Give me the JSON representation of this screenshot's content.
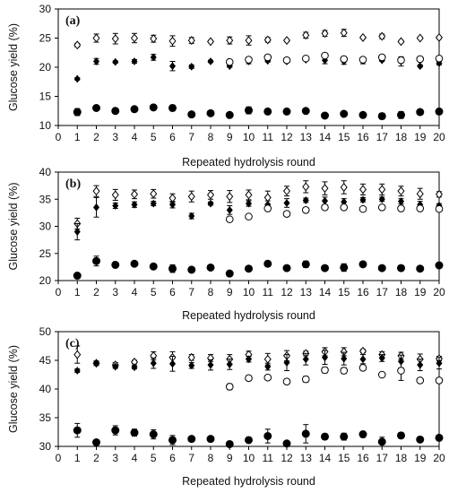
{
  "chart_data": [
    {
      "type": "scatter",
      "panel_label": "(a)",
      "xlabel": "Repeated hydrolysis round",
      "ylabel": "Glucose yield (%)",
      "xlim": [
        0,
        20
      ],
      "ylim": [
        10,
        30
      ],
      "xticks": [
        0,
        1,
        2,
        3,
        4,
        5,
        6,
        7,
        8,
        9,
        10,
        11,
        12,
        13,
        14,
        15,
        16,
        17,
        18,
        19,
        20
      ],
      "yticks": [
        10,
        15,
        20,
        25,
        30
      ],
      "grid": false,
      "series": [
        {
          "marker": "diamond-open",
          "x": [
            1,
            2,
            3,
            4,
            5,
            6,
            7,
            8,
            9,
            10,
            11,
            12,
            13,
            14,
            15,
            16,
            17,
            18,
            19,
            20
          ],
          "y": [
            23.8,
            25.0,
            24.9,
            25.0,
            24.9,
            24.5,
            24.6,
            24.4,
            24.6,
            24.6,
            24.7,
            24.6,
            25.5,
            25.8,
            25.9,
            25.1,
            25.3,
            24.4,
            25.0,
            25.1
          ],
          "err": [
            0.3,
            0.7,
            0.9,
            0.8,
            0.6,
            0.9,
            0.5,
            0.2,
            0.6,
            0.8,
            0.4,
            0.2,
            0.5,
            0.5,
            0.6,
            0.2,
            0.4,
            0.2,
            0.2,
            0.2
          ]
        },
        {
          "marker": "diamond-filled",
          "x": [
            1,
            2,
            3,
            4,
            5,
            6,
            7,
            8,
            9,
            10,
            11,
            12,
            13,
            14,
            15,
            16,
            17,
            18,
            19,
            20
          ],
          "y": [
            18.0,
            21.0,
            20.9,
            21.0,
            21.7,
            20.2,
            20.1,
            21.0,
            20.2,
            21.0,
            21.1,
            21.0,
            21.3,
            21.2,
            21.0,
            21.1,
            21.2,
            21.0,
            20.2,
            20.7
          ],
          "err": [
            0.2,
            0.5,
            0.2,
            0.3,
            0.5,
            0.8,
            0.3,
            0.2,
            0.2,
            0.4,
            0.2,
            0.2,
            0.2,
            0.6,
            0.5,
            0.5,
            0.2,
            0.8,
            0.2,
            0.3
          ]
        },
        {
          "marker": "circle-open",
          "x": [
            9,
            10,
            11,
            12,
            13,
            14,
            15,
            16,
            17,
            18,
            19,
            20
          ],
          "y": [
            20.9,
            21.3,
            21.7,
            21.2,
            21.5,
            22.0,
            21.4,
            21.3,
            21.7,
            21.2,
            21.4,
            21.5
          ],
          "err": [
            0,
            0,
            0,
            0,
            0,
            0,
            0,
            0,
            0,
            0,
            0,
            0
          ]
        },
        {
          "marker": "circle-filled",
          "x": [
            1,
            2,
            3,
            4,
            5,
            6,
            7,
            8,
            9,
            10,
            11,
            12,
            13,
            14,
            15,
            16,
            17,
            18,
            19,
            20
          ],
          "y": [
            12.3,
            13.0,
            12.5,
            12.8,
            13.1,
            13.0,
            11.9,
            12.1,
            11.8,
            12.6,
            12.4,
            12.4,
            12.5,
            11.7,
            12.0,
            11.8,
            11.6,
            11.8,
            12.3,
            12.4
          ],
          "err": [
            0.6,
            0.4,
            0.2,
            0.3,
            0.3,
            0.5,
            0.2,
            0.2,
            0.2,
            0.6,
            0.2,
            0.2,
            0.2,
            0.2,
            0.2,
            0.2,
            0.5,
            0.6,
            0.2,
            0.3
          ]
        }
      ]
    },
    {
      "type": "scatter",
      "panel_label": "(b)",
      "xlabel": "Repeated hydrolysis round",
      "ylabel": "Glucose yield (%)",
      "xlim": [
        0,
        20
      ],
      "ylim": [
        20,
        40
      ],
      "xticks": [
        0,
        1,
        2,
        3,
        4,
        5,
        6,
        7,
        8,
        9,
        10,
        11,
        12,
        13,
        14,
        15,
        16,
        17,
        18,
        19,
        20
      ],
      "yticks": [
        20,
        25,
        30,
        35,
        40
      ],
      "grid": false,
      "series": [
        {
          "marker": "diamond-open",
          "x": [
            1,
            2,
            3,
            4,
            5,
            6,
            7,
            8,
            9,
            10,
            11,
            12,
            13,
            14,
            15,
            16,
            17,
            18,
            19,
            20
          ],
          "y": [
            30.5,
            36.5,
            35.8,
            35.9,
            36.0,
            35.2,
            35.5,
            35.8,
            35.5,
            35.8,
            35.3,
            36.5,
            37.3,
            37.0,
            37.2,
            36.8,
            36.8,
            36.5,
            36.0,
            35.9
          ],
          "err": [
            1.0,
            1.0,
            1.0,
            0.8,
            0.8,
            0.8,
            1.0,
            0.8,
            1.1,
            0.9,
            1.2,
            0.9,
            1.1,
            1.2,
            1.2,
            1.0,
            1.0,
            0.9,
            1.0,
            0.5
          ]
        },
        {
          "marker": "diamond-filled",
          "x": [
            1,
            2,
            3,
            4,
            5,
            6,
            7,
            8,
            9,
            10,
            11,
            12,
            13,
            14,
            15,
            16,
            17,
            18,
            19,
            20
          ],
          "y": [
            29.0,
            33.5,
            33.8,
            34.0,
            34.2,
            34.0,
            31.9,
            34.2,
            33.0,
            34.2,
            34.0,
            34.3,
            34.8,
            34.7,
            34.5,
            34.9,
            35.0,
            34.6,
            34.0,
            33.8
          ],
          "err": [
            1.5,
            1.8,
            0.5,
            0.5,
            0.4,
            0.6,
            0.5,
            0.3,
            0.8,
            0.5,
            0.7,
            0.8,
            0.4,
            0.7,
            0.6,
            0.4,
            0.4,
            0.5,
            0.6,
            0.4
          ]
        },
        {
          "marker": "circle-open",
          "x": [
            9,
            10,
            11,
            12,
            13,
            14,
            15,
            16,
            17,
            18,
            19,
            20
          ],
          "y": [
            31.3,
            31.8,
            33.3,
            32.3,
            33.0,
            33.5,
            33.5,
            33.2,
            33.5,
            33.3,
            33.3,
            33.2
          ],
          "err": [
            0,
            0,
            0,
            0,
            0,
            0,
            0,
            0,
            0,
            0,
            0,
            0
          ]
        },
        {
          "marker": "circle-filled",
          "x": [
            1,
            2,
            3,
            4,
            5,
            6,
            7,
            8,
            9,
            10,
            11,
            12,
            13,
            14,
            15,
            16,
            17,
            18,
            19,
            20
          ],
          "y": [
            20.9,
            23.6,
            22.9,
            23.1,
            22.6,
            22.2,
            22.0,
            22.4,
            21.3,
            22.2,
            23.1,
            22.3,
            23.0,
            22.3,
            22.4,
            23.0,
            22.3,
            22.3,
            22.2,
            22.8
          ],
          "err": [
            0.2,
            0.9,
            0.4,
            0.4,
            0.4,
            0.7,
            0.3,
            0.2,
            0.2,
            0.2,
            0.5,
            0.5,
            0.6,
            0.4,
            0.7,
            0.2,
            0.2,
            0.5,
            0.3,
            0.2
          ]
        }
      ]
    },
    {
      "type": "scatter",
      "panel_label": "(c)",
      "xlabel": "Repeated hydrolysis round",
      "ylabel": "Glucose yield (%)",
      "xlim": [
        0,
        20
      ],
      "ylim": [
        30,
        50
      ],
      "xticks": [
        0,
        1,
        2,
        3,
        4,
        5,
        6,
        7,
        8,
        9,
        10,
        11,
        12,
        13,
        14,
        15,
        16,
        17,
        18,
        19,
        20
      ],
      "yticks": [
        30,
        35,
        40,
        45,
        50
      ],
      "grid": false,
      "series": [
        {
          "marker": "diamond-open",
          "x": [
            1,
            2,
            3,
            4,
            5,
            6,
            7,
            8,
            9,
            10,
            11,
            12,
            13,
            14,
            15,
            16,
            17,
            18,
            19,
            20
          ],
          "y": [
            46.0,
            44.5,
            44.2,
            44.7,
            45.8,
            45.5,
            45.5,
            45.4,
            45.2,
            46.0,
            45.2,
            45.8,
            46.2,
            46.5,
            46.5,
            46.6,
            46.0,
            45.8,
            45.2,
            45.3
          ],
          "err": [
            1.5,
            0.4,
            0.4,
            0.3,
            0.7,
            1.0,
            0.5,
            0.6,
            0.8,
            0.6,
            1.0,
            0.9,
            0.4,
            0.7,
            0.7,
            0.3,
            0.5,
            0.6,
            0.9,
            0.4
          ]
        },
        {
          "marker": "diamond-filled",
          "x": [
            1,
            2,
            3,
            4,
            5,
            6,
            7,
            8,
            9,
            10,
            11,
            12,
            13,
            14,
            15,
            16,
            17,
            18,
            19,
            20
          ],
          "y": [
            43.2,
            44.5,
            43.9,
            43.8,
            44.5,
            44.4,
            44.1,
            44.2,
            44.3,
            45.2,
            43.9,
            44.6,
            45.2,
            45.5,
            45.3,
            45.2,
            45.4,
            44.8,
            44.2,
            44.5
          ],
          "err": [
            0.3,
            0.3,
            0.3,
            0.3,
            0.9,
            1.3,
            0.5,
            0.9,
            0.9,
            0.5,
            0.6,
            1.4,
            1.0,
            1.2,
            1.1,
            0.8,
            0.6,
            1.1,
            1.0,
            1.0
          ]
        },
        {
          "marker": "circle-open",
          "x": [
            9,
            10,
            11,
            12,
            13,
            14,
            15,
            16,
            17,
            18,
            19,
            20
          ],
          "y": [
            40.4,
            41.9,
            42.0,
            41.3,
            41.7,
            43.3,
            43.2,
            43.7,
            42.5,
            43.2,
            41.5,
            41.5
          ],
          "err": [
            0.5,
            0.3,
            0.2,
            0.4,
            0.5,
            0.5,
            0.5,
            0.4,
            0.2,
            1.7,
            0.3,
            0.2
          ]
        },
        {
          "marker": "circle-filled",
          "x": [
            1,
            2,
            3,
            4,
            5,
            6,
            7,
            8,
            9,
            10,
            11,
            12,
            13,
            14,
            15,
            16,
            17,
            18,
            19,
            20
          ],
          "y": [
            32.8,
            30.7,
            32.8,
            32.4,
            32.1,
            31.1,
            31.3,
            31.3,
            30.4,
            31.1,
            31.8,
            30.5,
            32.2,
            31.7,
            31.7,
            32.1,
            30.8,
            31.9,
            31.2,
            31.5
          ],
          "err": [
            1.2,
            0.2,
            0.8,
            0.6,
            0.8,
            0.8,
            0.3,
            0.2,
            0.2,
            0.2,
            1.2,
            0.2,
            1.6,
            0.5,
            0.6,
            0.5,
            0.8,
            0.5,
            0.3,
            0.2
          ]
        }
      ]
    }
  ]
}
